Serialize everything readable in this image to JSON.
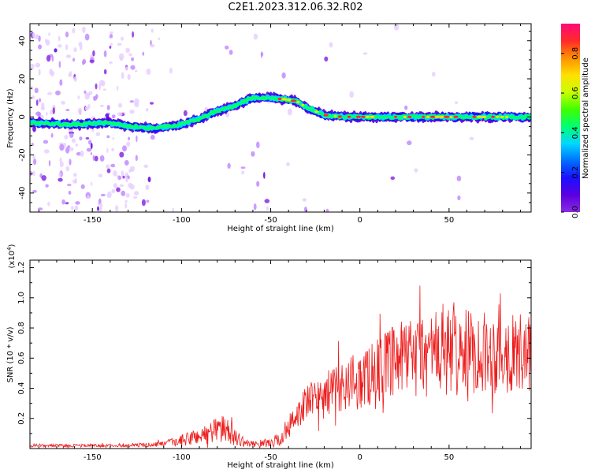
{
  "title": "C2E1.2023.312.06.32.R02",
  "colors": {
    "colormap": [
      "#ffffff",
      "#e8d0ff",
      "#c28cff",
      "#8a2be2",
      "#5a00e0",
      "#1a10ff",
      "#0070ff",
      "#00d8ff",
      "#00ff70",
      "#40ff00",
      "#c8ff00",
      "#ffe000",
      "#ff9000",
      "#ff2a2a",
      "#ff0a78"
    ],
    "snr_line": "#ee1c1c"
  },
  "chart_data": [
    {
      "type": "heatmap",
      "xlabel": "Height of straight line (km)",
      "ylabel": "Frequency (Hz)",
      "xlim": [
        -185,
        96
      ],
      "ylim": [
        -50,
        49
      ],
      "xticks": [
        -150,
        -100,
        -50,
        0,
        50
      ],
      "xtick_labels": [
        "-150",
        "-100",
        "-50",
        "0",
        "50"
      ],
      "yticks": [
        -40,
        -20,
        0,
        20,
        40
      ],
      "ytick_labels": [
        "-40",
        "-20",
        "0",
        "20",
        "40"
      ],
      "ridge": {
        "x": [
          -185,
          -160,
          -140,
          -130,
          -115,
          -100,
          -90,
          -80,
          -70,
          -60,
          -50,
          -40,
          -35,
          -30,
          -25,
          -20,
          -10,
          0,
          20,
          50,
          96
        ],
        "y": [
          -3,
          -4,
          -3,
          -5,
          -6,
          -4,
          -1,
          3,
          6,
          10,
          10,
          9,
          8,
          5,
          3,
          1,
          0,
          0,
          0,
          0,
          0
        ]
      },
      "colorbar": {
        "label": "Normalized spectral amplitude",
        "range": [
          0.0,
          0.95
        ],
        "ticks": [
          0.0,
          0.2,
          0.4,
          0.6,
          0.8
        ],
        "tick_labels": [
          "0.0",
          "0.2",
          "0.4",
          "0.6",
          "0.8"
        ]
      },
      "grid": false
    },
    {
      "type": "line",
      "xlabel": "Height of straight line (km)",
      "ylabel": "SNR (10 * v/v)",
      "scale_label": "(x10",
      "scale_exponent": "4",
      "scale_close": ")",
      "xlim": [
        -185,
        96
      ],
      "ylim": [
        0,
        1.25
      ],
      "xticks": [
        -150,
        -100,
        -50,
        0,
        50
      ],
      "xtick_labels": [
        "-150",
        "-100",
        "-50",
        "0",
        "50"
      ],
      "yticks": [
        0.2,
        0.4,
        0.6,
        0.8,
        1.0,
        1.2
      ],
      "ytick_labels": [
        "0.2",
        "0.4",
        "0.6",
        "0.8",
        "1.0",
        "1.2"
      ],
      "series": [
        {
          "envelope_x": [
            -185,
            -130,
            -110,
            -100,
            -95,
            -85,
            -80,
            -75,
            -70,
            -65,
            -60,
            -50,
            -45,
            -40,
            -35,
            -30,
            -20,
            -10,
            0,
            10,
            20,
            30,
            40,
            50,
            60,
            70,
            80,
            90,
            96
          ],
          "envelope_mean": [
            0.02,
            0.02,
            0.03,
            0.05,
            0.07,
            0.1,
            0.14,
            0.12,
            0.08,
            0.04,
            0.03,
            0.04,
            0.06,
            0.12,
            0.24,
            0.3,
            0.36,
            0.42,
            0.45,
            0.52,
            0.57,
            0.62,
            0.63,
            0.64,
            0.64,
            0.64,
            0.63,
            0.63,
            0.62
          ],
          "envelope_amp": [
            0.01,
            0.01,
            0.02,
            0.04,
            0.05,
            0.07,
            0.09,
            0.09,
            0.06,
            0.03,
            0.02,
            0.03,
            0.05,
            0.07,
            0.1,
            0.12,
            0.14,
            0.17,
            0.2,
            0.22,
            0.25,
            0.28,
            0.3,
            0.3,
            0.28,
            0.27,
            0.27,
            0.26,
            0.25
          ]
        }
      ],
      "grid": false
    }
  ]
}
